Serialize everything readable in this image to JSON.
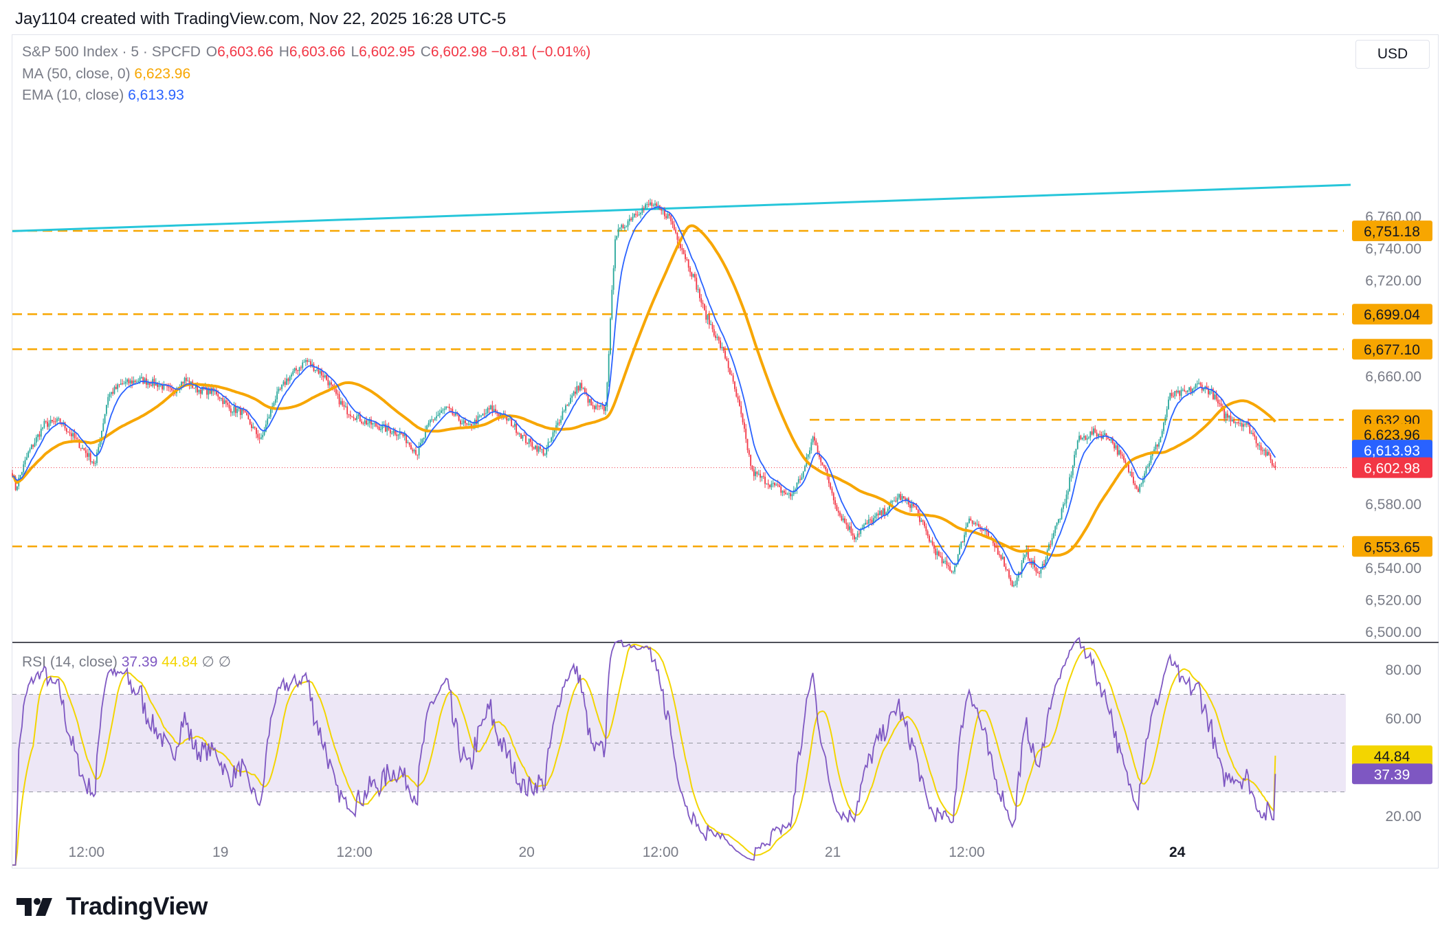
{
  "header": {
    "attribution": "Jay1104 created with TradingView.com, Nov 22, 2025 16:28 UTC-5"
  },
  "legend": {
    "symbol": "S&P 500 Index · 5 · SPCFD",
    "open_label": "O",
    "open": "6,603.66",
    "high_label": "H",
    "high": "6,603.66",
    "low_label": "L",
    "low": "6,602.95",
    "close_label": "C",
    "close": "6,602.98",
    "change": "−0.81 (−0.01%)",
    "ma_label": "MA (50, close, 0)",
    "ma_value": "6,623.96",
    "ema_label": "EMA (10, close)",
    "ema_value": "6,613.93",
    "rsi_label": "RSI (14, close)",
    "rsi_value": "37.39",
    "rsi_ma_value": "44.84",
    "rsi_extra1": "∅",
    "rsi_extra2": "∅"
  },
  "currency": "USD",
  "brand": {
    "name": "TradingView"
  },
  "colors": {
    "up": "#26a69a",
    "down": "#f23645",
    "ma": "#f7a600",
    "ema": "#2962ff",
    "trendline": "#26c6da",
    "level": "#f7a600",
    "rsi": "#7e57c2",
    "rsi_ma": "#f3d500",
    "rsi_band": "#ede7f6"
  },
  "chart_data": {
    "type": "candlestick",
    "price_axis": {
      "min": 6500,
      "max": 6780,
      "ticks": [
        "6,760.00",
        "6,740.00",
        "6,720.00",
        "6,660.00",
        "6,580.00",
        "6,540.00",
        "6,520.00",
        "6,500.00"
      ],
      "tick_values": [
        6760,
        6740,
        6720,
        6660,
        6580,
        6540,
        6520,
        6500
      ]
    },
    "time_axis": {
      "labels": [
        "12:00",
        "19",
        "12:00",
        "20",
        "12:00",
        "21",
        "12:00",
        "24"
      ],
      "positions": [
        12,
        96,
        180,
        288,
        372,
        480,
        564,
        696
      ]
    },
    "horizontal_levels": [
      {
        "value": 6751.18,
        "label": "6,751.18",
        "from": 0
      },
      {
        "value": 6699.04,
        "label": "6,699.04",
        "from": 0
      },
      {
        "value": 6677.1,
        "label": "6,677.10",
        "from": 0
      },
      {
        "value": 6632.9,
        "label": "6,632.90",
        "from": 500
      },
      {
        "value": 6553.65,
        "label": "6,553.65",
        "from": 0
      }
    ],
    "price_tags": [
      {
        "label": "6,623.96",
        "value": 6623.96,
        "color": "#f7a600",
        "text_color": "#131722"
      },
      {
        "label": "6,613.93",
        "value": 6613.93,
        "color": "#2962ff",
        "text_color": "#ffffff"
      },
      {
        "label": "6,602.98",
        "value": 6602.98,
        "color": "#f23645",
        "text_color": "#ffffff"
      }
    ],
    "trendline": [
      {
        "i": 0,
        "v": 6751
      },
      {
        "i": 848,
        "v": 6780
      }
    ],
    "last_price": 6602.98,
    "path_anchors": [
      [
        0,
        6600
      ],
      [
        2,
        6590
      ],
      [
        10,
        6612
      ],
      [
        20,
        6630
      ],
      [
        30,
        6632
      ],
      [
        40,
        6620
      ],
      [
        52,
        6605
      ],
      [
        60,
        6648
      ],
      [
        68,
        6655
      ],
      [
        80,
        6658
      ],
      [
        92,
        6655
      ],
      [
        100,
        6650
      ],
      [
        108,
        6658
      ],
      [
        116,
        6652
      ],
      [
        128,
        6650
      ],
      [
        136,
        6640
      ],
      [
        144,
        6638
      ],
      [
        156,
        6620
      ],
      [
        164,
        6645
      ],
      [
        172,
        6658
      ],
      [
        184,
        6670
      ],
      [
        196,
        6660
      ],
      [
        208,
        6640
      ],
      [
        220,
        6632
      ],
      [
        232,
        6628
      ],
      [
        244,
        6624
      ],
      [
        254,
        6612
      ],
      [
        262,
        6632
      ],
      [
        272,
        6640
      ],
      [
        286,
        6628
      ],
      [
        300,
        6640
      ],
      [
        312,
        6632
      ],
      [
        322,
        6620
      ],
      [
        334,
        6612
      ],
      [
        346,
        6640
      ],
      [
        356,
        6655
      ],
      [
        364,
        6640
      ],
      [
        372,
        6640
      ],
      [
        378,
        6748
      ],
      [
        390,
        6762
      ],
      [
        400,
        6768
      ],
      [
        412,
        6760
      ],
      [
        420,
        6740
      ],
      [
        428,
        6720
      ],
      [
        434,
        6700
      ],
      [
        440,
        6688
      ],
      [
        448,
        6670
      ],
      [
        456,
        6640
      ],
      [
        464,
        6600
      ],
      [
        472,
        6595
      ],
      [
        480,
        6590
      ],
      [
        488,
        6585
      ],
      [
        496,
        6600
      ],
      [
        502,
        6622
      ],
      [
        510,
        6600
      ],
      [
        518,
        6575
      ],
      [
        528,
        6560
      ],
      [
        536,
        6568
      ],
      [
        546,
        6575
      ],
      [
        556,
        6585
      ],
      [
        566,
        6578
      ],
      [
        574,
        6560
      ],
      [
        582,
        6545
      ],
      [
        590,
        6538
      ],
      [
        600,
        6572
      ],
      [
        610,
        6562
      ],
      [
        620,
        6548
      ],
      [
        628,
        6528
      ],
      [
        636,
        6550
      ],
      [
        644,
        6535
      ],
      [
        652,
        6560
      ],
      [
        660,
        6580
      ],
      [
        668,
        6620
      ],
      [
        678,
        6625
      ],
      [
        688,
        6622
      ],
      [
        698,
        6605
      ],
      [
        706,
        6590
      ],
      [
        712,
        6605
      ],
      [
        720,
        6622
      ],
      [
        726,
        6648
      ],
      [
        736,
        6650
      ],
      [
        744,
        6655
      ],
      [
        752,
        6650
      ],
      [
        760,
        6636
      ],
      [
        768,
        6632
      ],
      [
        774,
        6630
      ],
      [
        780,
        6620
      ],
      [
        786,
        6612
      ],
      [
        792,
        6603
      ]
    ],
    "rsi": {
      "axis_ticks": [
        "80.00",
        "60.00",
        "20.00"
      ],
      "axis_values": [
        80,
        60,
        20
      ],
      "min": 10,
      "max": 90,
      "upper": 70,
      "middle": 50,
      "lower": 30,
      "last": 37.39,
      "ma_last": 44.84
    },
    "rsi_tags": [
      {
        "label": "44.84",
        "value": 44.84,
        "color": "#f3d500",
        "text_color": "#131722"
      },
      {
        "label": "37.39",
        "value": 37.39,
        "color": "#7e57c2",
        "text_color": "#ffffff"
      }
    ]
  }
}
